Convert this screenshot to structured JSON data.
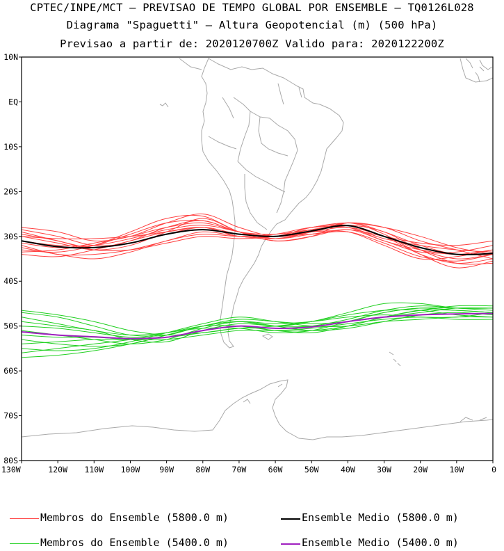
{
  "titles": {
    "line1": "CPTEC/INPE/MCT – PREVISAO DE TEMPO GLOBAL POR ENSEMBLE – TQ0126L028",
    "line2": "Diagrama \"Spaguetti\" – Altura Geopotencial (m) (500 hPa)",
    "line3": "Previsao a partir de: 2020120700Z  Valido para: 2020122200Z"
  },
  "map": {
    "lon_range": [
      -130,
      0
    ],
    "lat_range": [
      -80,
      10
    ],
    "lat_ticks": [
      "10N",
      "EQ",
      "10S",
      "20S",
      "30S",
      "40S",
      "50S",
      "60S",
      "70S",
      "80S"
    ],
    "lon_ticks": [
      "130W",
      "120W",
      "110W",
      "100W",
      "90W",
      "80W",
      "70W",
      "60W",
      "50W",
      "40W",
      "30W",
      "20W",
      "10W",
      "0"
    ],
    "coast_color": "#a9a9a9"
  },
  "colors": {
    "members_5800": "#ff4040",
    "members_5400": "#20d020",
    "mean_5800": "#000000",
    "mean_5400": "#a020c0"
  },
  "legend": [
    {
      "label": "Membros do Ensemble (5800.0 m)",
      "color": "#ff4040"
    },
    {
      "label": "Ensemble Medio (5800.0 m)",
      "color": "#000000"
    },
    {
      "label": "Membros do Ensemble (5400.0 m)",
      "color": "#20d020"
    },
    {
      "label": "Ensemble Medio (5400.0 m)",
      "color": "#a020c0"
    }
  ],
  "chart_data": {
    "type": "line",
    "x": [
      -130,
      -120,
      -110,
      -100,
      -90,
      -80,
      -70,
      -60,
      -50,
      -40,
      -30,
      -20,
      -10,
      0
    ],
    "series": [
      {
        "name": "Ensemble Medio (5800.0 m)",
        "values": [
          -31,
          -32.3,
          -32.5,
          -31.5,
          -29.5,
          -28.5,
          -29.5,
          -30,
          -28.8,
          -27.6,
          -30,
          -32.5,
          -34,
          -33.8
        ]
      },
      {
        "name": "Ensemble Medio (5400.0 m)",
        "values": [
          -51.3,
          -52,
          -52.4,
          -52.8,
          -52.5,
          -51,
          -50,
          -50.5,
          -50.2,
          -49,
          -48,
          -47.5,
          -47.3,
          -47.2
        ]
      }
    ],
    "members_5800": [
      [
        -28,
        -29,
        -31,
        -30,
        -27,
        -25,
        -28,
        -30,
        -29,
        -28,
        -30,
        -33,
        -35,
        -34
      ],
      [
        -30,
        -31.5,
        -33,
        -32,
        -29,
        -26,
        -29,
        -31,
        -30,
        -27,
        -29,
        -32,
        -34,
        -34
      ],
      [
        -32,
        -34,
        -34,
        -33,
        -31,
        -29,
        -30,
        -30.5,
        -29,
        -27,
        -28,
        -31,
        -33,
        -35
      ],
      [
        -34,
        -34.5,
        -33,
        -31,
        -29,
        -28,
        -30,
        -30,
        -28,
        -27.5,
        -30,
        -34,
        -36,
        -35
      ],
      [
        -29,
        -31,
        -32.5,
        -31,
        -28,
        -26.5,
        -29,
        -29.5,
        -28.5,
        -28,
        -31,
        -33,
        -34,
        -33
      ],
      [
        -31,
        -32,
        -32,
        -30.5,
        -28.5,
        -27.5,
        -29,
        -30.5,
        -29,
        -27,
        -29.5,
        -34,
        -37,
        -35.5
      ],
      [
        -33,
        -33.5,
        -32,
        -29,
        -26,
        -25.5,
        -29,
        -31,
        -30,
        -28.5,
        -31,
        -33.5,
        -33.5,
        -32
      ],
      [
        -30,
        -30.5,
        -30.5,
        -30,
        -29,
        -28,
        -30,
        -30,
        -28,
        -27,
        -28,
        -30,
        -32.5,
        -34
      ],
      [
        -32.5,
        -34,
        -35,
        -33.5,
        -31,
        -29.5,
        -30,
        -29.5,
        -28,
        -28,
        -30.5,
        -32,
        -33,
        -33.5
      ],
      [
        -28.5,
        -30,
        -32,
        -31.5,
        -29.5,
        -28,
        -29.5,
        -30,
        -29.5,
        -29,
        -31.5,
        -34.5,
        -35.5,
        -34
      ],
      [
        -31.5,
        -32.5,
        -32,
        -29.5,
        -27,
        -26.5,
        -29,
        -30.5,
        -29.5,
        -28.5,
        -30,
        -31.5,
        -32,
        -31
      ],
      [
        -29.5,
        -31,
        -33,
        -33,
        -31.5,
        -30,
        -30.5,
        -30,
        -28.5,
        -27.5,
        -29,
        -33,
        -36,
        -36
      ],
      [
        -33.5,
        -33,
        -31.5,
        -30,
        -28,
        -27,
        -29,
        -30,
        -29,
        -29,
        -32,
        -35,
        -34.5,
        -33
      ]
    ],
    "members_5400": [
      [
        -47,
        -48,
        -50,
        -52,
        -52,
        -50,
        -49,
        -50,
        -49,
        -47,
        -45,
        -45,
        -46,
        -46
      ],
      [
        -49,
        -50,
        -51,
        -53,
        -53.5,
        -51,
        -49.5,
        -50,
        -50,
        -49,
        -47,
        -46,
        -46.5,
        -47
      ],
      [
        -51,
        -52,
        -53,
        -54,
        -53,
        -50.5,
        -49,
        -49.5,
        -49,
        -48,
        -47.5,
        -48,
        -48,
        -47
      ],
      [
        -53,
        -54,
        -54.5,
        -54,
        -52,
        -50,
        -48.5,
        -49,
        -49.5,
        -49,
        -48,
        -47,
        -46,
        -46
      ],
      [
        -55,
        -55.5,
        -55,
        -53.5,
        -51.5,
        -49.5,
        -48,
        -49,
        -50,
        -50,
        -49,
        -48.5,
        -48,
        -48
      ],
      [
        -57,
        -56.5,
        -55.5,
        -54,
        -52,
        -50,
        -49,
        -50,
        -51,
        -50.5,
        -49,
        -47.5,
        -47,
        -47.5
      ],
      [
        -48,
        -49.5,
        -51,
        -52,
        -51.5,
        -50,
        -50,
        -51,
        -51,
        -50,
        -48,
        -46.5,
        -45.5,
        -45.5
      ],
      [
        -50,
        -50.5,
        -51.5,
        -52.5,
        -52.5,
        -51.5,
        -50.5,
        -50.5,
        -50,
        -48.5,
        -46.5,
        -45.5,
        -46,
        -46.5
      ],
      [
        -52,
        -52.5,
        -52.5,
        -53,
        -53,
        -52,
        -51,
        -51,
        -50.5,
        -49.5,
        -48.5,
        -48,
        -48.5,
        -48.5
      ],
      [
        -54,
        -53.5,
        -53,
        -53,
        -52.5,
        -51,
        -50,
        -51,
        -51.5,
        -50,
        -48,
        -46.5,
        -46.5,
        -47
      ],
      [
        -56,
        -55,
        -54,
        -53,
        -51.5,
        -50.5,
        -50.5,
        -51.5,
        -51,
        -49,
        -47,
        -46,
        -46,
        -46
      ],
      [
        -46.5,
        -47.5,
        -49,
        -51,
        -52,
        -51.5,
        -50.5,
        -50,
        -49,
        -47.5,
        -46.5,
        -46.5,
        -47.5,
        -48
      ]
    ]
  }
}
